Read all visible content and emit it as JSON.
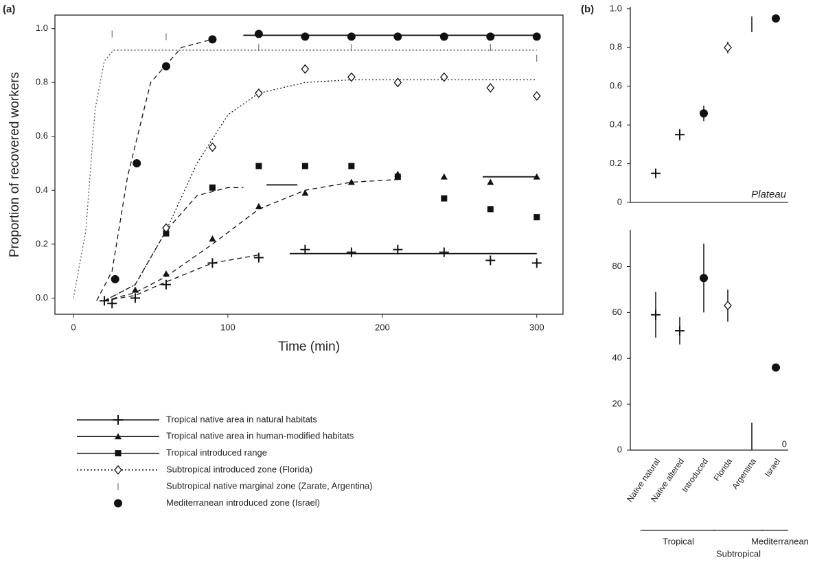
{
  "chart_data": [
    {
      "type": "scatter",
      "panel_label": "(a)",
      "xlabel": "Time (min)",
      "ylabel": "Proportion of recovered workers",
      "xlim": [
        -12,
        317
      ],
      "ylim": [
        -0.06,
        1.05
      ],
      "xticks": [
        0,
        100,
        200,
        300
      ],
      "yticks": [
        {
          "value": 0,
          "label": "0.0"
        },
        {
          "value": 0.2,
          "label": "0.2"
        },
        {
          "value": 0.4,
          "label": "0.4"
        },
        {
          "value": 0.6,
          "label": "0.6"
        },
        {
          "value": 0.8,
          "label": "0.8"
        },
        {
          "value": 1.0,
          "label": "1.0"
        }
      ],
      "series": [
        {
          "name": "Tropical native area in natural habitats",
          "color": "#111111",
          "marker": "plus",
          "legend_line": "solid",
          "x": [
            20,
            25,
            40,
            60,
            90,
            120,
            150,
            180,
            210,
            240,
            270,
            300
          ],
          "values": [
            -0.01,
            -0.02,
            0.0,
            0.05,
            0.13,
            0.15,
            0.18,
            0.17,
            0.18,
            0.17,
            0.14,
            0.13
          ],
          "fit": {
            "x": [
              20,
              40,
              60,
              90,
              120
            ],
            "y": [
              -0.01,
              0.01,
              0.06,
              0.13,
              0.16
            ],
            "dash": "7,5"
          },
          "plateau": {
            "x": [
              140,
              300
            ],
            "y": [
              0.165,
              0.165
            ]
          }
        },
        {
          "name": "Tropical native area in human-modified habitats",
          "color": "#111111",
          "marker": "triangle",
          "legend_line": "solid",
          "x": [
            40,
            60,
            90,
            120,
            150,
            180,
            210,
            240,
            270,
            300
          ],
          "values": [
            0.03,
            0.09,
            0.22,
            0.34,
            0.39,
            0.43,
            0.46,
            0.45,
            0.43,
            0.45
          ],
          "fit": {
            "x": [
              20,
              40,
              60,
              90,
              120,
              150,
              180,
              210
            ],
            "y": [
              -0.01,
              0.02,
              0.08,
              0.2,
              0.33,
              0.4,
              0.43,
              0.44
            ],
            "dash": "7,5"
          },
          "plateau": {
            "x": [
              265,
              300
            ],
            "y": [
              0.45,
              0.45
            ]
          }
        },
        {
          "name": "Tropical introduced range",
          "color": "#111111",
          "marker": "square",
          "legend_line": "solid",
          "x": [
            60,
            90,
            120,
            150,
            180,
            210,
            240,
            270,
            300
          ],
          "values": [
            0.24,
            0.41,
            0.49,
            0.49,
            0.49,
            0.45,
            0.37,
            0.33,
            0.3
          ],
          "fit": {
            "x": [
              20,
              40,
              60,
              80,
              100,
              110
            ],
            "y": [
              -0.01,
              0.05,
              0.25,
              0.38,
              0.41,
              0.41
            ],
            "dash": "7,5"
          },
          "plateau": {
            "x": [
              125,
              145
            ],
            "y": [
              0.42,
              0.42
            ]
          }
        },
        {
          "name": "Subtropical introduced zone (Florida)",
          "color": "#111111",
          "marker": "diamond",
          "legend_line": "dotted",
          "x": [
            60,
            90,
            120,
            150,
            180,
            210,
            240,
            270,
            300
          ],
          "values": [
            0.26,
            0.56,
            0.76,
            0.85,
            0.82,
            0.8,
            0.82,
            0.78,
            0.75
          ],
          "fit": {
            "x": [
              20,
              40,
              60,
              80,
              100,
              120,
              150,
              180,
              300
            ],
            "y": [
              -0.01,
              0.05,
              0.25,
              0.5,
              0.68,
              0.76,
              0.8,
              0.81,
              0.81
            ],
            "dash": "2,3"
          }
        },
        {
          "name": "Subtropical native marginal zone (Zarate, Argentina)",
          "color": "#555555",
          "marker": "tick",
          "legend_line": "none",
          "x": [
            25,
            60,
            120,
            180,
            270,
            300
          ],
          "values": [
            0.98,
            0.97,
            0.93,
            0.93,
            0.93,
            0.89
          ],
          "fit": {
            "x": [
              0,
              8,
              14,
              20,
              26,
              32,
              300
            ],
            "y": [
              0,
              0.25,
              0.7,
              0.88,
              0.92,
              0.92,
              0.92
            ],
            "dash": "2,3"
          }
        },
        {
          "name": "Mediterranean introduced zone (Israel)",
          "color": "#111111",
          "marker": "circle",
          "legend_line": "none",
          "x": [
            27,
            41,
            60,
            90,
            120,
            150,
            180,
            210,
            240,
            270,
            300
          ],
          "values": [
            0.07,
            0.5,
            0.86,
            0.96,
            0.98,
            0.97,
            0.97,
            0.97,
            0.97,
            0.97,
            0.97
          ],
          "fit": {
            "x": [
              15,
              25,
              35,
              50,
              70,
              90
            ],
            "y": [
              -0.01,
              0.1,
              0.45,
              0.8,
              0.93,
              0.96
            ],
            "dash": "7,5"
          },
          "plateau": {
            "x": [
              110,
              300
            ],
            "y": [
              0.975,
              0.975
            ]
          }
        }
      ]
    },
    {
      "type": "errorbar",
      "panel_label": "(b)",
      "annotation": "Plateau",
      "color": "#111111",
      "ylim": [
        0,
        1.01
      ],
      "yticks": [
        0,
        0.2,
        0.4,
        0.6,
        0.8,
        {
          "value": 1.0,
          "label": "1.0"
        }
      ],
      "markers": [
        "plus",
        "plus",
        "circle",
        "diamond",
        "tick",
        "circle"
      ],
      "values": [
        0.15,
        0.35,
        0.46,
        0.8,
        0.92,
        0.95
      ],
      "errors": [
        0.02,
        0.03,
        0.04,
        0.03,
        0.04,
        0.01
      ]
    },
    {
      "type": "errorbar",
      "annotation": "0",
      "color": "#111111",
      "ylim": [
        0,
        96
      ],
      "yticks": [
        0,
        20,
        40,
        60,
        80
      ],
      "markers": [
        "plus",
        "plus",
        "circle",
        "diamond",
        "none",
        "circle"
      ],
      "values": [
        59,
        52,
        75,
        63,
        6,
        36
      ],
      "errors": [
        10,
        6,
        15,
        7,
        6,
        1
      ],
      "categories": [
        "Native natural",
        "Native altered",
        "Introduced",
        "Florida",
        "Argentina",
        "Israel"
      ],
      "groups": [
        {
          "name": "Tropical",
          "size": 3
        },
        {
          "name": "Subtropical",
          "size": 2
        },
        {
          "name": "Mediterranean",
          "size": 1
        }
      ]
    }
  ]
}
